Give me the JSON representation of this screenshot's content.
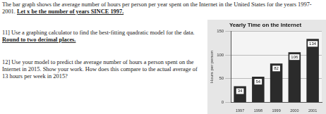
{
  "intro": {
    "text": "The bar graph shows the average number of hours per person per year spent on the Internet in the United States for the years 1997-2001.",
    "emphasis": "Let x be the number of years SINCE 1997."
  },
  "questions": [
    {
      "text": "11] Use a graphing calculator to find the best-fitting quadratic model for the data.",
      "emphasis": "Round to two decimal places."
    },
    {
      "text": "12] Use your model to predict the average number of hours a person spent on the Internet in 2015. Show your work. How does this compare to the actual average of 13 hours per week in 2015?"
    }
  ],
  "chart_data": {
    "type": "bar",
    "title": "Yearly Time on the Internet",
    "y_label": "Hours per person",
    "categories": [
      "1997",
      "1998",
      "1999",
      "2000",
      "2001"
    ],
    "values": [
      34,
      54,
      82,
      106,
      134
    ],
    "color": "#2b2b2b",
    "ylim": [
      0,
      150
    ],
    "yticks": [
      0,
      50,
      100,
      150
    ],
    "grid": true,
    "data_labels": true
  }
}
